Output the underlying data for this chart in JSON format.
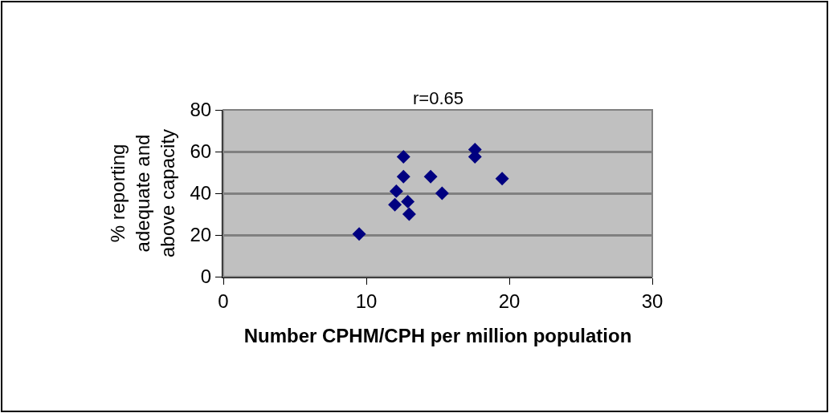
{
  "chart_data": {
    "type": "scatter",
    "annotations": [
      "r=0.65"
    ],
    "xlabel": "Number CPHM/CPH per million population",
    "ylabel": "% reporting adequate and above capacity",
    "x": [
      9.5,
      12.6,
      12.6,
      12.1,
      12.0,
      12.9,
      13.0,
      14.5,
      15.3,
      17.6,
      17.6,
      19.5
    ],
    "series": [
      {
        "color": "#000080",
        "values": [
          20.5,
          57.5,
          48,
          41,
          34.5,
          36,
          30,
          48,
          40,
          61,
          57.5,
          47
        ]
      }
    ],
    "xlim": [
      0,
      30
    ],
    "xticks": [
      0,
      10,
      20,
      30
    ],
    "ylim": [
      0,
      80
    ],
    "yticks": [
      0,
      20,
      40,
      60,
      80
    ],
    "grid": "y",
    "marker": "diamond"
  }
}
